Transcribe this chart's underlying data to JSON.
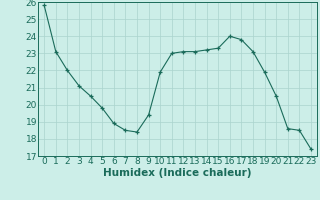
{
  "x": [
    0,
    1,
    2,
    3,
    4,
    5,
    6,
    7,
    8,
    9,
    10,
    11,
    12,
    13,
    14,
    15,
    16,
    17,
    18,
    19,
    20,
    21,
    22,
    23
  ],
  "y": [
    25.8,
    23.1,
    22.0,
    21.1,
    20.5,
    19.8,
    18.9,
    18.5,
    18.4,
    19.4,
    21.9,
    23.0,
    23.1,
    23.1,
    23.2,
    23.3,
    24.0,
    23.8,
    23.1,
    21.9,
    20.5,
    18.6,
    18.5,
    17.4
  ],
  "xlabel": "Humidex (Indice chaleur)",
  "ylim": [
    17,
    26
  ],
  "xlim": [
    -0.5,
    23.5
  ],
  "yticks": [
    17,
    18,
    19,
    20,
    21,
    22,
    23,
    24,
    25,
    26
  ],
  "xticks": [
    0,
    1,
    2,
    3,
    4,
    5,
    6,
    7,
    8,
    9,
    10,
    11,
    12,
    13,
    14,
    15,
    16,
    17,
    18,
    19,
    20,
    21,
    22,
    23
  ],
  "line_color": "#1a6b5a",
  "marker": "+",
  "bg_color": "#cceee8",
  "grid_color": "#aad4ce",
  "tick_label_fontsize": 6.5,
  "xlabel_fontsize": 7.5
}
